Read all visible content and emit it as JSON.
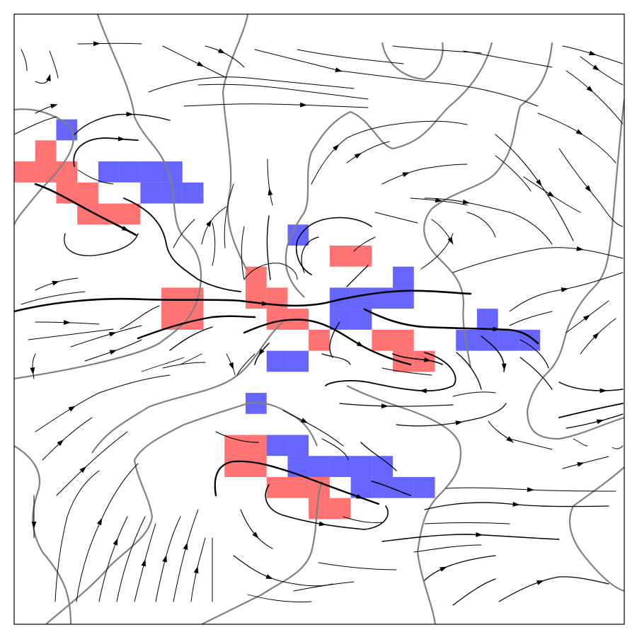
{
  "figure": {
    "grid_cols": 29,
    "grid_rows": 29,
    "colors": {
      "background": "#ffffff",
      "frame": "#000000",
      "contour": "#808080",
      "streamline": "#000000",
      "cell_red": "#ff0000",
      "cell_blue": "#0000ff",
      "cell_mixed": "#8b0000"
    },
    "cells": {
      "red": [
        [
          1,
          6
        ],
        [
          0,
          7
        ],
        [
          1,
          7
        ],
        [
          2,
          7
        ],
        [
          2,
          8
        ],
        [
          3,
          8
        ],
        [
          3,
          9
        ],
        [
          4,
          9
        ],
        [
          5,
          9
        ],
        [
          7,
          13
        ],
        [
          8,
          13
        ],
        [
          7,
          14
        ],
        [
          8,
          14
        ],
        [
          11,
          12
        ],
        [
          11,
          13
        ],
        [
          12,
          13
        ],
        [
          12,
          14
        ],
        [
          13,
          14
        ],
        [
          14,
          15
        ],
        [
          15,
          11
        ],
        [
          16,
          11
        ],
        [
          17,
          15
        ],
        [
          18,
          15
        ],
        [
          18,
          16
        ],
        [
          19,
          16
        ],
        [
          10,
          20
        ],
        [
          11,
          20
        ],
        [
          10,
          21
        ],
        [
          11,
          21
        ],
        [
          12,
          22
        ],
        [
          13,
          22
        ],
        [
          14,
          22
        ],
        [
          14,
          23
        ],
        [
          15,
          23
        ]
      ],
      "blue": [
        [
          2,
          5
        ],
        [
          4,
          7
        ],
        [
          5,
          7
        ],
        [
          6,
          7
        ],
        [
          7,
          7
        ],
        [
          6,
          8
        ],
        [
          7,
          8
        ],
        [
          8,
          8
        ],
        [
          13,
          10
        ],
        [
          18,
          12
        ],
        [
          15,
          13
        ],
        [
          16,
          13
        ],
        [
          17,
          13
        ],
        [
          18,
          13
        ],
        [
          15,
          14
        ],
        [
          16,
          14
        ],
        [
          22,
          14
        ],
        [
          21,
          15
        ],
        [
          22,
          15
        ],
        [
          23,
          15
        ],
        [
          24,
          15
        ],
        [
          12,
          16
        ],
        [
          13,
          16
        ],
        [
          11,
          18
        ],
        [
          12,
          20
        ],
        [
          13,
          20
        ],
        [
          13,
          21
        ],
        [
          14,
          21
        ],
        [
          15,
          21
        ],
        [
          16,
          21
        ],
        [
          17,
          21
        ],
        [
          16,
          22
        ],
        [
          17,
          22
        ],
        [
          18,
          22
        ],
        [
          19,
          22
        ]
      ]
    }
  }
}
